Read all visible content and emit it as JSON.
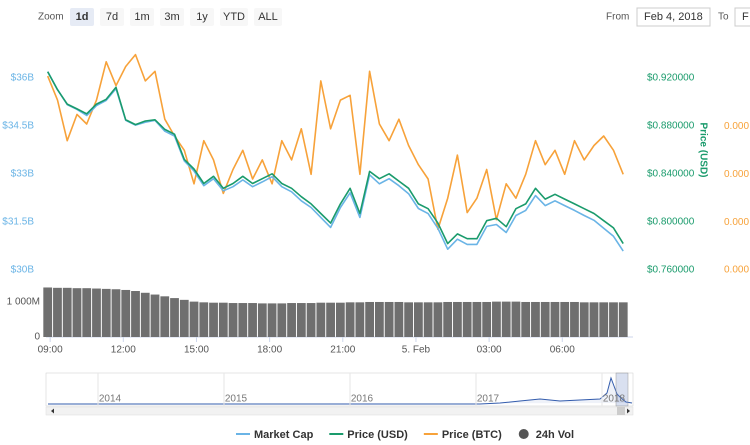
{
  "chart_data": {
    "type": "line",
    "range_selector": {
      "label": "Zoom",
      "buttons": [
        "1d",
        "7d",
        "1m",
        "3m",
        "1y",
        "YTD",
        "ALL"
      ],
      "selected": 0
    },
    "date_range": {
      "from_label": "From",
      "from": "Feb 4, 2018",
      "to_label": "To",
      "to": "F"
    },
    "y2_title": "Price (USD)",
    "grid": false,
    "xlim": [
      8.83,
      32.9
    ],
    "xticks": [
      {
        "value": 9,
        "label": "09:00"
      },
      {
        "value": 12,
        "label": "12:00"
      },
      {
        "value": 15,
        "label": "15:00"
      },
      {
        "value": 18,
        "label": "18:00"
      },
      {
        "value": 21,
        "label": "21:00"
      },
      {
        "value": 24,
        "label": "5. Feb"
      },
      {
        "value": 27,
        "label": "03:00"
      },
      {
        "value": 30,
        "label": "06:00"
      }
    ],
    "ylim": [
      30000000000,
      37020000000
    ],
    "yticks": [
      {
        "value": 36000000000,
        "label": "$36B"
      },
      {
        "value": 34500000000,
        "label": "$34.5B"
      },
      {
        "value": 33000000000,
        "label": "$33B"
      },
      {
        "value": 31500000000,
        "label": "$31.5B"
      },
      {
        "value": 30000000000,
        "label": "$30B"
      }
    ],
    "y2lim": [
      0.76,
      0.9472
    ],
    "y2ticks": [
      {
        "value": 0.92,
        "label": "$0.920000"
      },
      {
        "value": 0.88,
        "label": "$0.880000"
      },
      {
        "value": 0.84,
        "label": "$0.840000"
      },
      {
        "value": 0.8,
        "label": "$0.800000"
      },
      {
        "value": 0.76,
        "label": "$0.760000"
      }
    ],
    "y3lim": [
      9.6e-05,
      0.0001054
    ],
    "y3ticks": [
      {
        "value": 0.000102,
        "label": "0.000"
      },
      {
        "value": 0.0001,
        "label": "0.000"
      },
      {
        "value": 9.8e-05,
        "label": "0.000"
      },
      {
        "value": 9.6e-05,
        "label": "0.000"
      }
    ],
    "vollim": [
      0,
      1470000000
    ],
    "volticks": [
      {
        "value": 1000000000,
        "label": "1 000M"
      },
      0
    ],
    "x": [
      8.9,
      9.3,
      9.7,
      10.1,
      10.5,
      10.9,
      11.3,
      11.7,
      12.1,
      12.5,
      12.9,
      13.3,
      13.7,
      14.1,
      14.5,
      14.9,
      15.3,
      15.7,
      16.1,
      16.5,
      16.9,
      17.3,
      17.7,
      18.1,
      18.5,
      18.9,
      19.3,
      19.7,
      20.1,
      20.5,
      20.9,
      21.3,
      21.7,
      22.1,
      22.5,
      22.9,
      23.3,
      23.7,
      24.1,
      24.5,
      24.9,
      25.3,
      25.7,
      26.1,
      26.5,
      26.9,
      27.3,
      27.7,
      28.1,
      28.5,
      28.9,
      29.3,
      29.7,
      30.1,
      30.5,
      30.9,
      31.3,
      31.7,
      32.1,
      32.5
    ],
    "series": [
      {
        "name": "Market Cap",
        "color": "#6ab4e6",
        "axis": "y",
        "values": [
          36190000000,
          35630000000,
          35160000000,
          35010000000,
          34820000000,
          35130000000,
          35290000000,
          35660000000,
          34670000000,
          34520000000,
          34610000000,
          34670000000,
          34330000000,
          34180000000,
          33400000000,
          33090000000,
          32630000000,
          32850000000,
          32470000000,
          32600000000,
          32810000000,
          32600000000,
          32750000000,
          32910000000,
          32600000000,
          32440000000,
          32160000000,
          31950000000,
          31640000000,
          31330000000,
          31950000000,
          32410000000,
          31640000000,
          32970000000,
          32690000000,
          32850000000,
          32630000000,
          32380000000,
          31920000000,
          31760000000,
          31300000000,
          30650000000,
          30960000000,
          30800000000,
          30800000000,
          31360000000,
          31420000000,
          31170000000,
          31700000000,
          31860000000,
          32320000000,
          32010000000,
          32160000000,
          32010000000,
          31860000000,
          31700000000,
          31550000000,
          31300000000,
          31050000000,
          30590000000
        ]
      },
      {
        "name": "Price (USD)",
        "color": "#1a9b6c",
        "axis": "y2",
        "values": [
          0.925,
          0.91,
          0.898,
          0.894,
          0.89,
          0.898,
          0.902,
          0.912,
          0.885,
          0.881,
          0.884,
          0.885,
          0.877,
          0.873,
          0.852,
          0.844,
          0.832,
          0.838,
          0.828,
          0.832,
          0.838,
          0.832,
          0.836,
          0.84,
          0.832,
          0.828,
          0.821,
          0.815,
          0.807,
          0.799,
          0.815,
          0.828,
          0.807,
          0.842,
          0.836,
          0.84,
          0.834,
          0.828,
          0.815,
          0.811,
          0.799,
          0.782,
          0.79,
          0.786,
          0.786,
          0.801,
          0.803,
          0.796,
          0.811,
          0.815,
          0.828,
          0.819,
          0.823,
          0.819,
          0.815,
          0.811,
          0.807,
          0.801,
          0.795,
          0.782
        ]
      },
      {
        "name": "Price (BTC)",
        "color": "#f7a23a",
        "axis": "y3",
        "values": [
          0.0001041,
          0.0001031,
          0.0001014,
          0.0001025,
          0.0001021,
          0.0001031,
          0.0001047,
          0.0001037,
          0.0001045,
          0.000105,
          0.0001039,
          0.0001043,
          0.0001023,
          0.0001016,
          0.000101,
          9.96e-05,
          0.0001014,
          0.0001006,
          9.92e-05,
          0.0001002,
          0.000101,
          9.98e-05,
          0.0001006,
          9.96e-05,
          0.0001014,
          0.0001006,
          0.0001019,
          0.0001,
          0.0001039,
          0.0001019,
          0.0001031,
          0.0001033,
          0.0001,
          0.0001043,
          0.0001021,
          0.0001014,
          0.0001023,
          0.0001012,
          0.0001004,
          9.98e-05,
          9.77e-05,
          9.9e-05,
          0.0001008,
          9.84e-05,
          9.9e-05,
          0.0001002,
          9.81e-05,
          9.96e-05,
          9.9e-05,
          0.0001,
          0.0001014,
          0.0001004,
          0.000101,
          0.0001,
          0.0001014,
          0.0001006,
          0.0001012,
          0.0001016,
          0.000101,
          0.0001
        ]
      },
      {
        "name": "24h Vol",
        "color": "#6f6f6f",
        "axis": "vol",
        "values": [
          1400000000,
          1390000000,
          1390000000,
          1380000000,
          1380000000,
          1370000000,
          1360000000,
          1350000000,
          1330000000,
          1300000000,
          1250000000,
          1200000000,
          1150000000,
          1100000000,
          1050000000,
          1000000000,
          980000000,
          970000000,
          970000000,
          960000000,
          960000000,
          960000000,
          950000000,
          950000000,
          950000000,
          960000000,
          960000000,
          960000000,
          970000000,
          970000000,
          970000000,
          980000000,
          980000000,
          990000000,
          990000000,
          990000000,
          990000000,
          980000000,
          980000000,
          980000000,
          980000000,
          990000000,
          990000000,
          990000000,
          990000000,
          990000000,
          1000000000,
          1000000000,
          1000000000,
          990000000,
          990000000,
          990000000,
          990000000,
          990000000,
          990000000,
          980000000,
          980000000,
          980000000,
          980000000,
          980000000
        ]
      }
    ],
    "navigator": {
      "years": [
        "2014",
        "2015",
        "2016",
        "2017",
        "2018"
      ]
    }
  }
}
